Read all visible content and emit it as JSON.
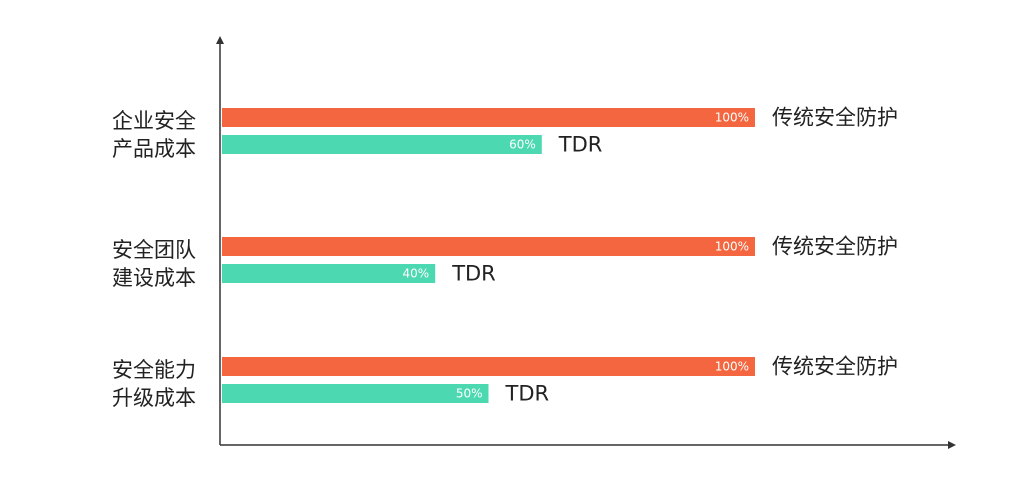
{
  "chart_data": {
    "type": "bar",
    "orientation": "horizontal",
    "categories": [
      [
        "企业安全",
        "产品成本"
      ],
      [
        "安全团队",
        "建设成本"
      ],
      [
        "安全能力",
        "升级成本"
      ]
    ],
    "series": [
      {
        "name": "传统安全防护",
        "values": [
          100,
          100,
          100
        ],
        "color": "#f4663f"
      },
      {
        "name": "TDR",
        "values": [
          60,
          40,
          50
        ],
        "color": "#4cd8b0"
      }
    ],
    "value_format": "{v}%",
    "xlim": [
      0,
      100
    ],
    "grid": false,
    "legend": "inline at bar ends",
    "axis_color": "#333333"
  }
}
